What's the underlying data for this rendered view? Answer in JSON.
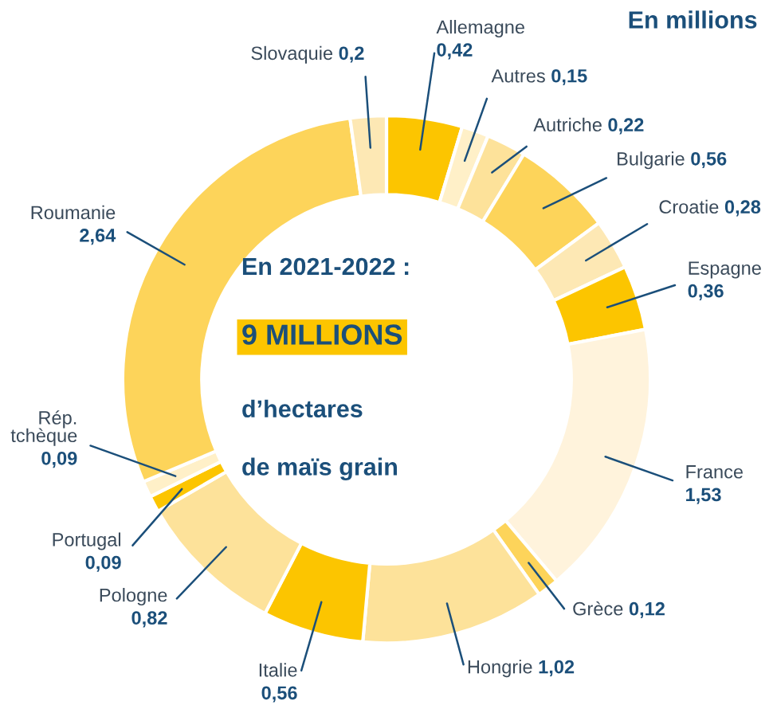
{
  "chart_data": {
    "type": "donut",
    "title": "En millions",
    "categories": [
      "Allemagne",
      "Autres",
      "Autriche",
      "Bulgarie",
      "Croatie",
      "Espagne",
      "France",
      "Grèce",
      "Hongrie",
      "Italie",
      "Pologne",
      "Portugal",
      "Rép.\ntchèque",
      "Roumanie",
      "Slovaquie"
    ],
    "values": [
      0.42,
      0.15,
      0.22,
      0.56,
      0.28,
      0.36,
      1.53,
      0.12,
      1.02,
      0.56,
      0.82,
      0.09,
      0.09,
      2.64,
      0.2
    ],
    "value_labels": [
      "0,42",
      "0,15",
      "0,22",
      "0,56",
      "0,28",
      "0,36",
      "1,53",
      "0,12",
      "1,02",
      "0,56",
      "0,82",
      "0,09",
      "0,09",
      "2,64",
      "0,2"
    ],
    "colors": [
      "#fcc500",
      "#fff0c8",
      "#fde29a",
      "#fdd45a",
      "#fde8b4",
      "#fcc500",
      "#fff3dc",
      "#fdd45a",
      "#fde29a",
      "#fcc500",
      "#fde29a",
      "#fcc500",
      "#fff0c8",
      "#fdd45a",
      "#fde8b4"
    ],
    "annotations": [
      "En 2021-2022 :",
      "9 MILLIONS",
      "d’hectares",
      "de maïs grain"
    ]
  }
}
